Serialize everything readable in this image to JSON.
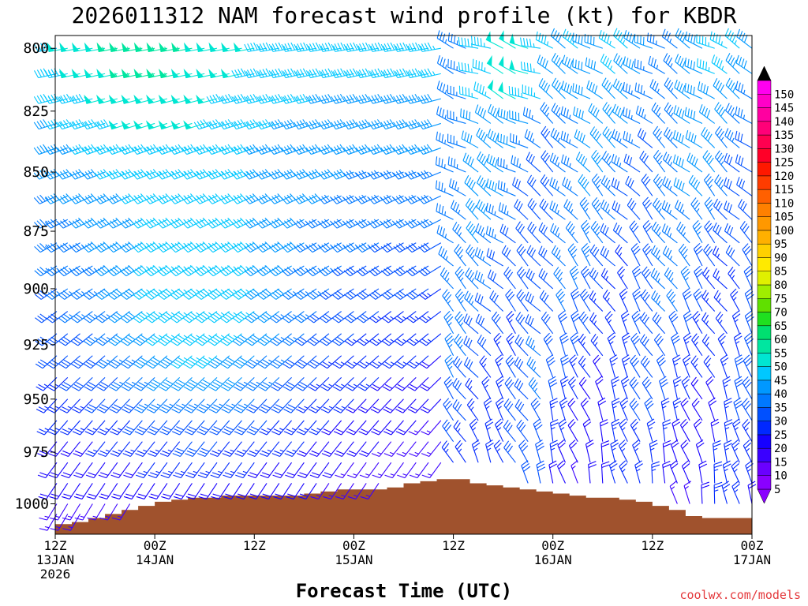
{
  "chart_data": {
    "type": "wind_barbs",
    "title": "2026011312 NAM forecast wind profile (kt) for KBDR",
    "xlabel": "Forecast Time (UTC)",
    "ylabel": "",
    "credit": "coolwx.com/models",
    "y_axis": {
      "range": [
        1015,
        795
      ],
      "ticks": [
        {
          "value": 800,
          "label": "800"
        },
        {
          "value": 825,
          "label": "825"
        },
        {
          "value": 850,
          "label": "850"
        },
        {
          "value": 875,
          "label": "875"
        },
        {
          "value": 900,
          "label": "900"
        },
        {
          "value": 925,
          "label": "925"
        },
        {
          "value": 950,
          "label": "950"
        },
        {
          "value": 975,
          "label": "975"
        },
        {
          "value": 1000,
          "label": "1000"
        }
      ]
    },
    "x_axis": {
      "range_hours": [
        0,
        84
      ],
      "ticks": [
        {
          "hour": 0,
          "lines": [
            "12Z",
            "13JAN",
            "2026"
          ]
        },
        {
          "hour": 12,
          "lines": [
            "00Z",
            "14JAN"
          ]
        },
        {
          "hour": 24,
          "lines": [
            "12Z"
          ]
        },
        {
          "hour": 36,
          "lines": [
            "00Z",
            "15JAN"
          ]
        },
        {
          "hour": 48,
          "lines": [
            "12Z"
          ]
        },
        {
          "hour": 60,
          "lines": [
            "00Z",
            "16JAN"
          ]
        },
        {
          "hour": 72,
          "lines": [
            "12Z"
          ]
        },
        {
          "hour": 84,
          "lines": [
            "00Z",
            "17JAN"
          ]
        }
      ]
    },
    "colorbar": {
      "unit": "kt",
      "levels": [
        5,
        10,
        15,
        20,
        25,
        30,
        35,
        40,
        45,
        50,
        55,
        60,
        65,
        70,
        75,
        80,
        85,
        90,
        95,
        100,
        105,
        110,
        115,
        120,
        125,
        130,
        135,
        140,
        145,
        150
      ],
      "labels": [
        "5",
        "10",
        "15",
        "20",
        "25",
        "30",
        "35",
        "40",
        "45",
        "50",
        "55",
        "60",
        "65",
        "70",
        "75",
        "80",
        "85",
        "90",
        "95",
        "100",
        "105",
        "110",
        "115",
        "120",
        "125",
        "130",
        "135",
        "140",
        "145",
        "150"
      ],
      "colors": [
        "#8a00ff",
        "#6a00ff",
        "#3a00ff",
        "#1600ff",
        "#0028ff",
        "#0050ff",
        "#0078ff",
        "#0098ff",
        "#00c8ff",
        "#00e6d2",
        "#00e6a0",
        "#00e070",
        "#20e020",
        "#60e000",
        "#a0ee00",
        "#e0f000",
        "#ffea00",
        "#ffd000",
        "#ffb000",
        "#ff9800",
        "#ff8000",
        "#ff6000",
        "#ff3c00",
        "#ff1800",
        "#ff0028",
        "#ff0050",
        "#ff0078",
        "#ff00a0",
        "#ff00c8",
        "#ff00f0"
      ]
    },
    "terrain_surface_hpa": [
      {
        "hour": 0,
        "p": 1010
      },
      {
        "hour": 2,
        "p": 1009
      },
      {
        "hour": 4,
        "p": 1007
      },
      {
        "hour": 6,
        "p": 1005
      },
      {
        "hour": 8,
        "p": 1003
      },
      {
        "hour": 10,
        "p": 1001
      },
      {
        "hour": 12,
        "p": 999
      },
      {
        "hour": 14,
        "p": 998
      },
      {
        "hour": 16,
        "p": 997
      },
      {
        "hour": 18,
        "p": 997
      },
      {
        "hour": 20,
        "p": 996
      },
      {
        "hour": 22,
        "p": 996
      },
      {
        "hour": 24,
        "p": 996
      },
      {
        "hour": 26,
        "p": 996
      },
      {
        "hour": 28,
        "p": 996
      },
      {
        "hour": 30,
        "p": 995
      },
      {
        "hour": 32,
        "p": 994
      },
      {
        "hour": 34,
        "p": 993
      },
      {
        "hour": 36,
        "p": 993
      },
      {
        "hour": 38,
        "p": 993
      },
      {
        "hour": 40,
        "p": 992
      },
      {
        "hour": 42,
        "p": 990
      },
      {
        "hour": 44,
        "p": 989
      },
      {
        "hour": 46,
        "p": 988
      },
      {
        "hour": 48,
        "p": 988
      },
      {
        "hour": 50,
        "p": 990
      },
      {
        "hour": 52,
        "p": 991
      },
      {
        "hour": 54,
        "p": 992
      },
      {
        "hour": 56,
        "p": 993
      },
      {
        "hour": 58,
        "p": 994
      },
      {
        "hour": 60,
        "p": 995
      },
      {
        "hour": 62,
        "p": 996
      },
      {
        "hour": 64,
        "p": 997
      },
      {
        "hour": 66,
        "p": 997
      },
      {
        "hour": 68,
        "p": 998
      },
      {
        "hour": 70,
        "p": 999
      },
      {
        "hour": 72,
        "p": 1001
      },
      {
        "hour": 74,
        "p": 1003
      },
      {
        "hour": 76,
        "p": 1006
      },
      {
        "hour": 78,
        "p": 1007
      },
      {
        "hour": 80,
        "p": 1007
      },
      {
        "hour": 82,
        "p": 1007
      },
      {
        "hour": 84,
        "p": 1007
      }
    ],
    "levels_hpa": [
      800,
      810,
      820,
      830,
      840,
      850,
      860,
      870,
      880,
      890,
      900,
      910,
      920,
      930,
      940,
      950,
      960,
      970,
      980,
      990,
      1000,
      1005
    ],
    "wind_regimes": [
      {
        "hours": [
          0,
          46
        ],
        "direction_deg_bottom": 210,
        "direction_deg_top": 260,
        "speed_kt_bottom": 15,
        "speed_kt_top": 45,
        "jet_core_hour": 18,
        "jet_core_level": 915,
        "jet_core_speed_kt": 50
      },
      {
        "hours": [
          48,
          60
        ],
        "direction_deg_bottom": 340,
        "direction_deg_top": 290,
        "speed_kt_bottom": 25,
        "speed_kt_top": 40
      },
      {
        "hours": [
          60,
          84
        ],
        "direction_deg_bottom": 350,
        "direction_deg_top": 300,
        "speed_kt_bottom": 20,
        "speed_kt_top": 40
      }
    ],
    "barb_time_step_hours": 1.5
  }
}
